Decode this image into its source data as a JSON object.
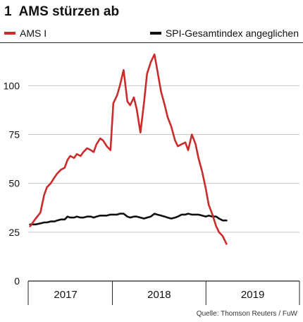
{
  "header": {
    "number": "1",
    "title": "AMS stürzen ab"
  },
  "legend": [
    {
      "name": "AMS I",
      "color": "#cc2b2b"
    },
    {
      "name": "SPI-Gesamtindex angeglichen",
      "color": "#111111"
    }
  ],
  "source": "Quelle: Thomson Reuters / FuW",
  "chart_data": {
    "type": "line",
    "title": "AMS stürzen ab",
    "xlabel": "",
    "ylabel": "",
    "xlim": [
      2016.6,
      2019.5
    ],
    "ylim": [
      0,
      120
    ],
    "yticks": [
      0,
      25,
      50,
      75,
      100
    ],
    "xtick_labels": [
      {
        "label": "2017",
        "x": 2017.0
      },
      {
        "label": "2018",
        "x": 2018.0
      },
      {
        "label": "2019",
        "x": 2019.0
      }
    ],
    "x_separators": [
      2016.6,
      2017.5,
      2018.5,
      2019.5
    ],
    "grid": "horizontal",
    "legend_position": "top",
    "series": [
      {
        "name": "AMS I",
        "color": "#cc2b2b",
        "x": [
          2016.62,
          2016.68,
          2016.73,
          2016.77,
          2016.8,
          2016.84,
          2016.88,
          2016.91,
          2016.95,
          2016.99,
          2017.02,
          2017.05,
          2017.09,
          2017.12,
          2017.16,
          2017.19,
          2017.23,
          2017.27,
          2017.3,
          2017.33,
          2017.37,
          2017.4,
          2017.44,
          2017.48,
          2017.51,
          2017.55,
          2017.58,
          2017.62,
          2017.66,
          2017.69,
          2017.73,
          2017.76,
          2017.8,
          2017.84,
          2017.87,
          2017.91,
          2017.95,
          2017.98,
          2018.02,
          2018.06,
          2018.09,
          2018.13,
          2018.17,
          2018.2,
          2018.24,
          2018.28,
          2018.31,
          2018.35,
          2018.39,
          2018.42,
          2018.46,
          2018.5,
          2018.53,
          2018.57,
          2018.61,
          2018.64,
          2018.68,
          2018.72
        ],
        "y": [
          28,
          32,
          35,
          44,
          48,
          50,
          53,
          55,
          57,
          58,
          62,
          64,
          63,
          65,
          64,
          66,
          68,
          67,
          66,
          70,
          73,
          72,
          69,
          67,
          91,
          95,
          100,
          108,
          92,
          90,
          94,
          88,
          76,
          92,
          106,
          112,
          116,
          108,
          97,
          90,
          84,
          79,
          72,
          69,
          70,
          71,
          67,
          75,
          70,
          63,
          56,
          47,
          39,
          34,
          28,
          25,
          23,
          19
        ]
      },
      {
        "name": "SPI-Gesamtindex angeglichen",
        "color": "#111111",
        "x": [
          2016.62,
          2016.68,
          2016.73,
          2016.77,
          2016.8,
          2016.84,
          2016.88,
          2016.91,
          2016.95,
          2016.99,
          2017.02,
          2017.05,
          2017.09,
          2017.12,
          2017.16,
          2017.19,
          2017.23,
          2017.27,
          2017.3,
          2017.33,
          2017.37,
          2017.4,
          2017.44,
          2017.48,
          2017.51,
          2017.55,
          2017.58,
          2017.62,
          2017.66,
          2017.69,
          2017.73,
          2017.76,
          2017.8,
          2017.84,
          2017.87,
          2017.91,
          2017.95,
          2017.98,
          2018.02,
          2018.06,
          2018.09,
          2018.13,
          2018.17,
          2018.2,
          2018.24,
          2018.28,
          2018.31,
          2018.35,
          2018.39,
          2018.42,
          2018.46,
          2018.5,
          2018.53,
          2018.57,
          2018.61,
          2018.64,
          2018.68,
          2018.72
        ],
        "y": [
          29,
          29,
          29.5,
          30,
          30,
          30.5,
          30.5,
          31,
          31.5,
          31.5,
          33,
          32.5,
          32.5,
          33,
          32.5,
          32.5,
          33,
          33,
          32.5,
          33,
          33.5,
          33.5,
          33.5,
          34,
          34,
          34,
          34.5,
          34.5,
          33,
          32.5,
          33,
          33,
          32.5,
          32,
          32.5,
          33,
          34.5,
          34,
          33.5,
          33,
          32.5,
          32,
          32.5,
          33,
          34,
          34,
          34.5,
          34,
          34,
          34,
          33.5,
          33,
          33.5,
          33,
          33,
          32,
          31,
          31
        ]
      }
    ]
  }
}
